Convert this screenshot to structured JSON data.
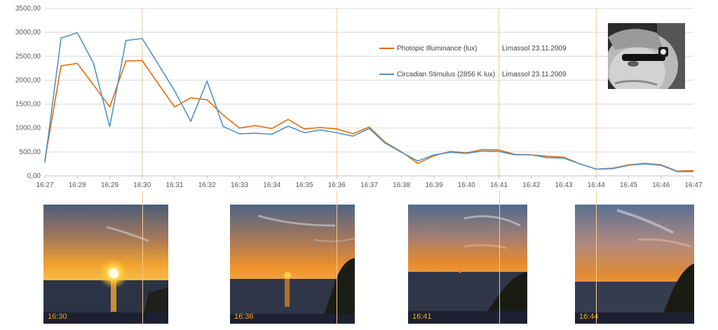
{
  "chart_data": {
    "type": "line",
    "x": [
      "16:27",
      "16:27:30",
      "16:28",
      "16:28:30",
      "16:29",
      "16:29:30",
      "16:30",
      "16:30:30",
      "16:31",
      "16:31:30",
      "16:32",
      "16:32:30",
      "16:33",
      "16:33:30",
      "16:34",
      "16:34:30",
      "16:35",
      "16:35:30",
      "16:36",
      "16:36:30",
      "16:37",
      "16:37:30",
      "16:38",
      "16:38:30",
      "16:39",
      "16:39:30",
      "16:40",
      "16:40:30",
      "16:41",
      "16:41:30",
      "16:42",
      "16:42:30",
      "16:43",
      "16:43:30",
      "16:44",
      "16:44:30",
      "16:45",
      "16:45:30",
      "16:46",
      "16:46:30",
      "16:47"
    ],
    "xtick_labels": [
      "16:27",
      "16:28",
      "16:29",
      "16:30",
      "16:31",
      "16:32",
      "16:33",
      "16:34",
      "16:35",
      "16:36",
      "16:37",
      "16:38",
      "16:39",
      "16:40",
      "16:41",
      "16:42",
      "16:43",
      "16:44",
      "16:45",
      "16:46",
      "16:47"
    ],
    "ytick_labels": [
      "0,00",
      "500,00",
      "1000,00",
      "1500,00",
      "2000,00",
      "2500,00",
      "3000,00",
      "3500,00"
    ],
    "ylim": [
      0,
      3500
    ],
    "grid": true,
    "legend_position": "top-right",
    "series": [
      {
        "name": "Photopic Illuminance (lux)",
        "place_date": "Limassol 23.11.2009",
        "color": "#e36c0a",
        "values": [
          330,
          2300,
          2350,
          1900,
          1440,
          2400,
          2410,
          1920,
          1440,
          1630,
          1590,
          1270,
          1000,
          1050,
          990,
          1180,
          980,
          1010,
          980,
          880,
          1020,
          700,
          500,
          260,
          420,
          510,
          480,
          550,
          540,
          450,
          440,
          410,
          390,
          250,
          140,
          160,
          230,
          260,
          230,
          100,
          110
        ]
      },
      {
        "name": "Circadian Stimulus (2856 K lux)",
        "place_date": "Limassol 23.11.2009",
        "color": "#4f95c6",
        "values": [
          280,
          2880,
          2990,
          2350,
          1030,
          2830,
          2870,
          2330,
          1780,
          1140,
          1980,
          1030,
          880,
          890,
          870,
          1040,
          900,
          960,
          900,
          830,
          990,
          680,
          490,
          310,
          440,
          490,
          470,
          520,
          510,
          440,
          440,
          380,
          370,
          250,
          140,
          150,
          220,
          250,
          220,
          90,
          90
        ]
      }
    ],
    "marker_times": [
      "16:30",
      "16:36",
      "16:41",
      "16:44"
    ],
    "marker_color": "#f6c890"
  },
  "photos": [
    {
      "label": "16:30",
      "icon": "sunset-photo"
    },
    {
      "label": "16:36",
      "icon": "sunset-photo"
    },
    {
      "label": "16:41",
      "icon": "sunset-photo"
    },
    {
      "label": "16:44",
      "icon": "sunset-photo"
    }
  ],
  "portrait": {
    "icon": "person-with-light-meter-glasses-photo"
  }
}
